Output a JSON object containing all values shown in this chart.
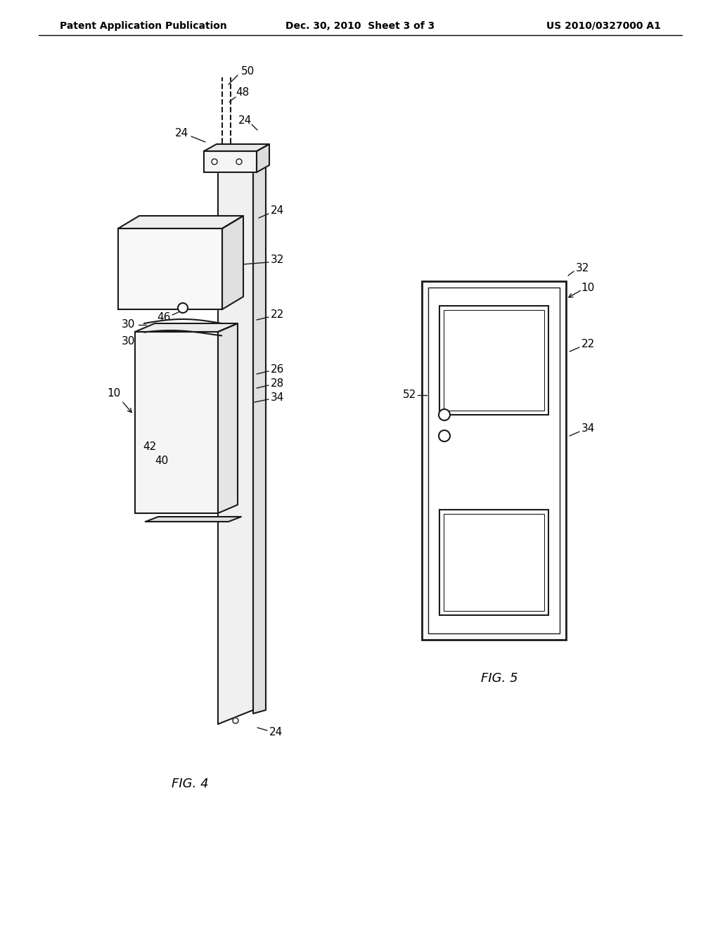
{
  "background_color": "#ffffff",
  "header": {
    "left": "Patent Application Publication",
    "center": "Dec. 30, 2010  Sheet 3 of 3",
    "right": "US 2010/0327000 A1",
    "fontsize": 11
  },
  "fig4_label": "FIG. 4",
  "fig5_label": "FIG. 5",
  "line_color": "#1a1a1a",
  "line_width": 1.5
}
